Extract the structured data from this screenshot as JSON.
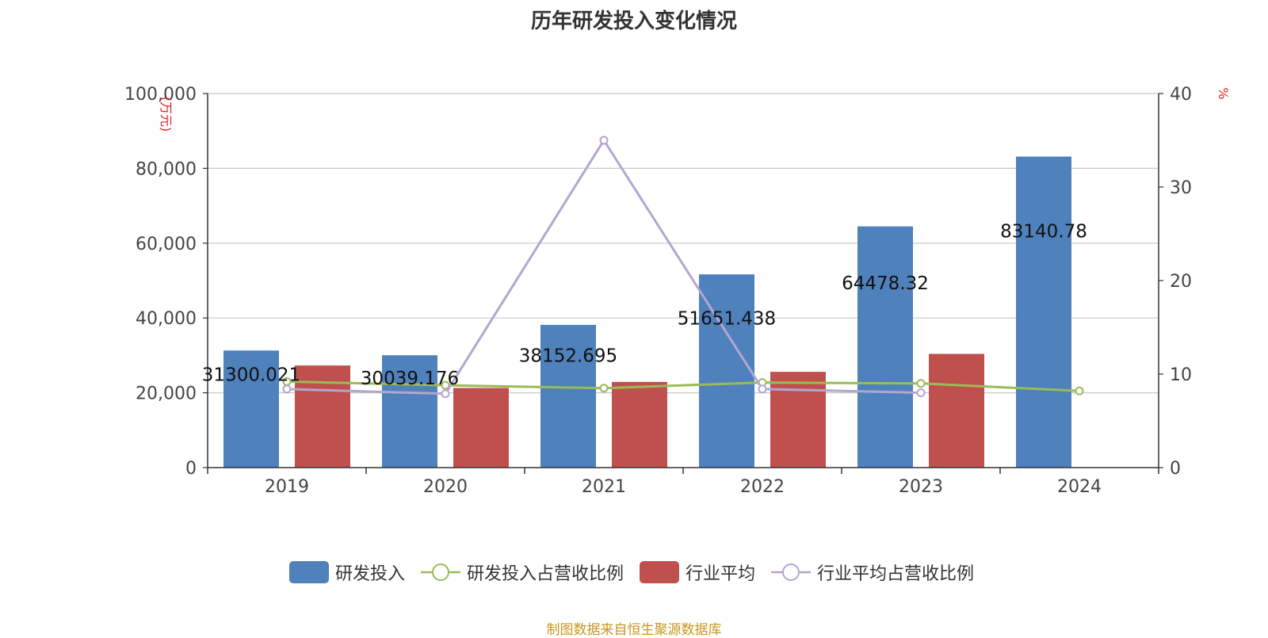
{
  "chart_data": {
    "type": "bar",
    "title": "历年研发投入变化情况",
    "categories": [
      "2019",
      "2020",
      "2021",
      "2022",
      "2023",
      "2024"
    ],
    "y_left": {
      "unit_label": "(万元)",
      "ticks": [
        "0",
        "20,000",
        "40,000",
        "60,000",
        "80,000",
        "100,000"
      ],
      "range": [
        0,
        100000
      ]
    },
    "y_right": {
      "unit_label": "%",
      "ticks": [
        "0",
        "10",
        "20",
        "30",
        "40"
      ],
      "range": [
        0,
        40
      ]
    },
    "grid": true,
    "legend_position": "bottom",
    "series": [
      {
        "name": "研发投入",
        "kind": "bar",
        "axis": "left",
        "color": "#4f81bd",
        "values": [
          31300.021,
          30039.176,
          38152.695,
          51651.438,
          64478.32,
          83140.78
        ],
        "labels": [
          "31300.021",
          "30039.176",
          "38152.695",
          "51651.438",
          "64478.32",
          "83140.78"
        ]
      },
      {
        "name": "研发投入占营收比例",
        "kind": "line",
        "axis": "right",
        "color": "#9bbb59",
        "values": [
          9.2,
          8.8,
          8.5,
          9.1,
          9.0,
          8.2
        ]
      },
      {
        "name": "行业平均",
        "kind": "bar",
        "axis": "left",
        "color": "#c0504d",
        "values": [
          27300,
          21300,
          22900,
          25600,
          30400,
          null
        ]
      },
      {
        "name": "行业平均占营收比例",
        "kind": "line",
        "axis": "right",
        "color": "#b3a6d2",
        "values": [
          8.4,
          7.9,
          35.0,
          8.4,
          8.0,
          null
        ]
      }
    ]
  },
  "source_text": "制图数据来自恒生聚源数据库"
}
